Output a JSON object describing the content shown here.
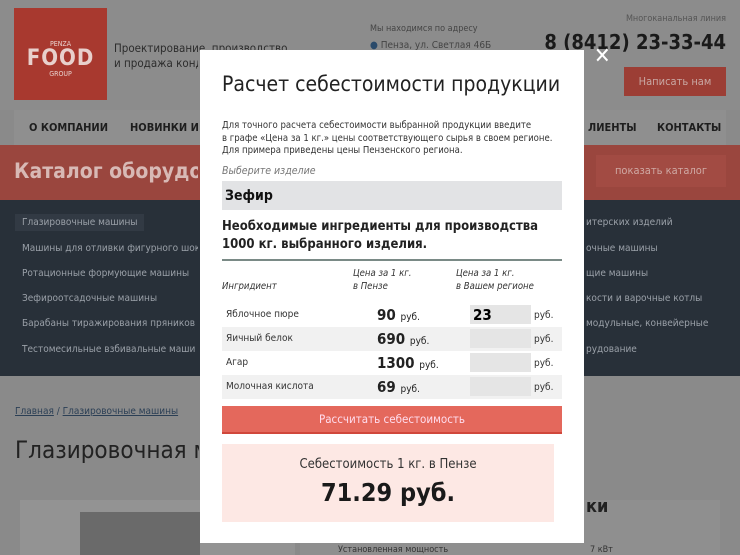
{
  "site": {
    "logo": {
      "top": "PENZA",
      "main": "FOOD",
      "bottom": "GROUP"
    },
    "tagline": [
      "Проектирование, производство",
      "и продажа конд"
    ],
    "address_label": "Мы находимся по адресу",
    "address": "Пенза, ул. Светлая 46Б",
    "phone_label": "Многоканальная линия",
    "phone": "8 (8412) 23-33-44",
    "write_button": "Написать нам",
    "nav": [
      "О КОМПАНИИ",
      "НОВИНКИ И СП",
      "ЛИЕНТЫ",
      "КОНТАКТЫ"
    ],
    "catalog_title": "Каталог оборудов",
    "show_catalog": "показать каталог",
    "catalog_left": [
      "Глазировочные машины",
      "Машины для отливки фигурного шок",
      "Ротационные формующие машины",
      "Зефироотсадочные машины",
      "Барабаны тиражирования пряников",
      "Тестомесильные взбивальные маши"
    ],
    "catalog_right": [
      "итерских изделий",
      "очные машины",
      "щие машины",
      "кости и варочные котлы",
      "модульные, конвейерные",
      "рудование"
    ],
    "breadcrumb": [
      "Главная",
      "Глазировочные машины"
    ],
    "page_title": "Глазировочная м",
    "spec_heading": "ки",
    "spec_row": {
      "label": "Установленная мощность",
      "value": "7 кВт"
    }
  },
  "modal": {
    "title": "Расчет себестоимости продукции",
    "intro": [
      "Для точного расчета себестоимости выбранной продукции введите",
      "в графе «Цена за 1 кг.» цены соответствующего сырья в своем регионе.",
      "Для примера приведены цены Пензенского региона."
    ],
    "select_label": "Выберите изделие",
    "selected_product": "Зефир",
    "ingredients_heading": [
      "Необходимые ингредиенты для производства",
      "1000 кг. выбранного изделия."
    ],
    "columns": {
      "ingredient": "Ингридиент",
      "penza": [
        "Цена за 1 кг.",
        "в Пензе"
      ],
      "region": [
        "Цена за 1 кг.",
        "в Вашем регионе"
      ]
    },
    "currency": "руб.",
    "rows": [
      {
        "name": "Яблочное пюре",
        "penza": "90",
        "region": "23"
      },
      {
        "name": "Яичный белок",
        "penza": "690",
        "region": ""
      },
      {
        "name": "Агар",
        "penza": "1300",
        "region": ""
      },
      {
        "name": "Молочная кислота",
        "penza": "69",
        "region": ""
      }
    ],
    "calc_button": "Рассчитать себестоимость",
    "result_label": "Себестоимость 1 кг. в Пензе",
    "result_value": "71.29 руб.",
    "close_icon": "close-icon",
    "accent": "#e4685c"
  }
}
